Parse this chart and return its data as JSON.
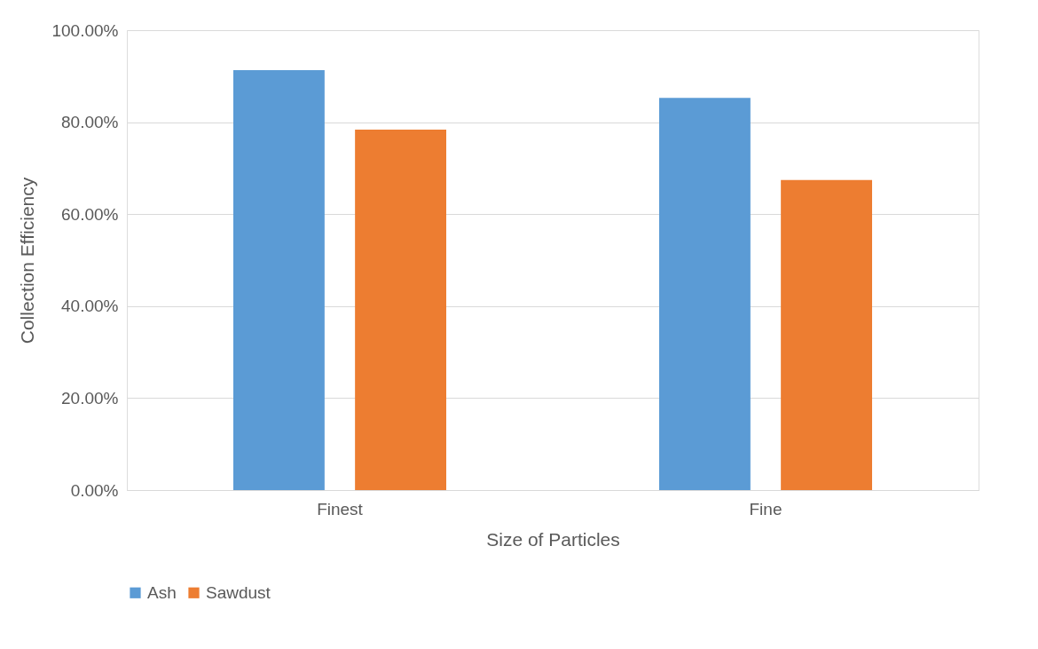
{
  "chart_data": {
    "type": "bar",
    "xlabel": "Size of Particles",
    "ylabel": "Collection Efficiency",
    "categories": [
      "Finest",
      "Fine"
    ],
    "series": [
      {
        "name": "Ash",
        "color": "#5b9bd5",
        "values": [
          91.3,
          85.3
        ]
      },
      {
        "name": "Sawdust",
        "color": "#ed7d31",
        "values": [
          78.4,
          67.4
        ]
      }
    ],
    "ylim": [
      0,
      100
    ],
    "yticks": [
      {
        "value": 0,
        "label": "0.00%"
      },
      {
        "value": 20,
        "label": "20.00%"
      },
      {
        "value": 40,
        "label": "40.00%"
      },
      {
        "value": 60,
        "label": "60.00%"
      },
      {
        "value": 80,
        "label": "80.00%"
      },
      {
        "value": 100,
        "label": "100.00%"
      }
    ],
    "grid": "y",
    "legend": "bottom"
  }
}
